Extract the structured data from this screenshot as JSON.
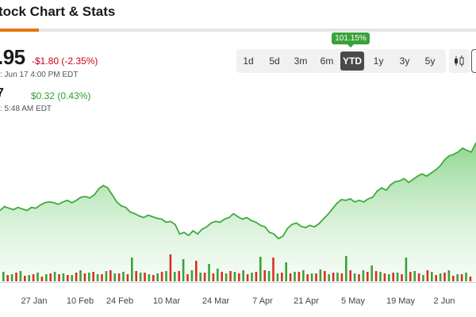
{
  "header": {
    "title": "tock Chart & Stats"
  },
  "quote": {
    "price": ".95",
    "change": "-$1.80 (-2.35%)",
    "close_time": ": Jun 17 4:00 PM EDT",
    "after_hours_price": "7",
    "after_hours_change": "$0.32 (0.43%)",
    "after_hours_time": ": 5:48 AM EDT"
  },
  "range_selector": {
    "items": [
      {
        "label": "1d"
      },
      {
        "label": "5d"
      },
      {
        "label": "3m"
      },
      {
        "label": "6m"
      },
      {
        "label": "YTD"
      },
      {
        "label": "1y"
      },
      {
        "label": "3y"
      },
      {
        "label": "5y"
      }
    ],
    "selected": "YTD",
    "ytd_return": "101.15%"
  },
  "chart_type": {
    "icon": "candlestick-icon"
  },
  "colors": {
    "up": "#3aa23a",
    "down": "#d93025",
    "line": "#4caf50",
    "area": "#7ccf7c",
    "negative": "#d0021b"
  },
  "chart_data": {
    "type": "area",
    "x_ticks": [
      "27 Jan",
      "10 Feb",
      "24 Feb",
      "10 Mar",
      "24 Mar",
      "7 Apr",
      "21 Apr",
      "5 May",
      "19 May",
      "2 Jun"
    ],
    "ylim": [
      0,
      100
    ],
    "price": [
      60,
      65,
      63,
      61,
      64,
      62,
      60,
      64,
      63,
      67,
      70,
      71,
      70,
      68,
      71,
      73,
      70,
      73,
      77,
      78,
      76,
      80,
      88,
      92,
      89,
      80,
      71,
      66,
      64,
      58,
      56,
      53,
      51,
      54,
      52,
      50,
      49,
      45,
      46,
      42,
      30,
      32,
      28,
      34,
      30,
      36,
      39,
      44,
      46,
      45,
      49,
      51,
      56,
      52,
      49,
      51,
      47,
      45,
      41,
      39,
      32,
      30,
      24,
      27,
      37,
      42,
      44,
      40,
      38,
      41,
      39,
      43,
      49,
      55,
      62,
      69,
      74,
      73,
      75,
      71,
      73,
      71,
      75,
      77,
      85,
      89,
      86,
      93,
      97,
      98,
      101,
      96,
      100,
      104,
      107,
      104,
      108,
      112,
      117,
      125,
      130,
      132,
      135,
      140,
      137,
      135,
      147
    ],
    "volume_up": [
      12,
      9,
      13,
      8,
      11,
      9,
      12,
      10,
      8,
      14,
      11,
      9,
      13,
      10,
      12,
      30,
      11,
      9,
      10,
      13,
      12,
      28,
      14,
      11,
      22,
      16,
      10,
      12,
      14,
      11,
      31,
      13,
      10,
      24,
      12,
      14,
      10,
      15,
      9,
      11,
      32,
      10,
      14,
      20,
      12,
      9,
      11,
      30,
      13,
      8,
      12,
      10,
      14,
      9,
      11,
      15,
      12,
      13,
      10,
      9
    ],
    "volume_down": [
      8,
      11,
      7,
      9,
      6,
      10,
      9,
      8,
      11,
      10,
      12,
      9,
      14,
      10,
      9,
      13,
      11,
      8,
      12,
      34,
      13,
      9,
      26,
      11,
      10,
      12,
      13,
      10,
      9,
      12,
      14,
      30,
      11,
      10,
      12,
      9,
      10,
      13,
      11,
      10,
      14,
      9,
      12,
      13,
      10,
      11,
      9,
      12,
      10,
      14
    ]
  }
}
